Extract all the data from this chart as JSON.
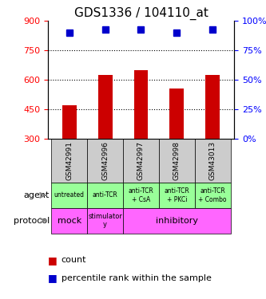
{
  "title": "GDS1336 / 104110_at",
  "samples": [
    "GSM42991",
    "GSM42996",
    "GSM42997",
    "GSM42998",
    "GSM43013"
  ],
  "counts": [
    470,
    625,
    650,
    555,
    625
  ],
  "percentiles": [
    90,
    93,
    93,
    90,
    93
  ],
  "ylim_left": [
    300,
    900
  ],
  "ylim_right": [
    0,
    100
  ],
  "yticks_left": [
    300,
    450,
    600,
    750,
    900
  ],
  "yticks_right": [
    0,
    25,
    50,
    75,
    100
  ],
  "bar_color": "#cc0000",
  "dot_color": "#0000cc",
  "agent_labels": [
    "untreated",
    "anti-TCR",
    "anti-TCR\n+ CsA",
    "anti-TCR\n+ PKCi",
    "anti-TCR\n+ Combo"
  ],
  "protocol_labels": [
    "mock",
    "stimulator\ny",
    "inhibitory"
  ],
  "agent_color": "#99ff99",
  "protocol_mock_color": "#ff66ff",
  "protocol_stim_color": "#ff66ff",
  "protocol_inhibitory_color": "#ff66ff",
  "sample_bg_color": "#cccccc",
  "legend_count_color": "#cc0000",
  "legend_pct_color": "#0000cc"
}
